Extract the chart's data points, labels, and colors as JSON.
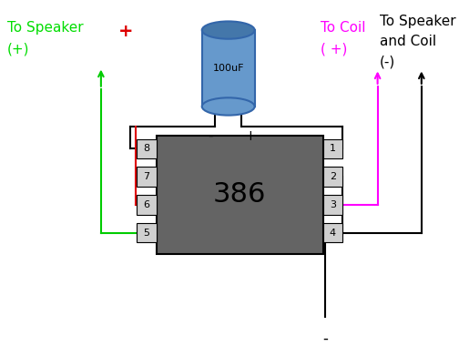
{
  "bg_color": "#ffffff",
  "chip_color": "#646464",
  "chip_label": "386",
  "cap_color": "#6699cc",
  "cap_top_color": "#4477aa",
  "cap_label": "100uF",
  "pin_bg": "#d0d0d0",
  "pin_labels_left": [
    "8",
    "7",
    "6",
    "5"
  ],
  "pin_labels_right": [
    "1",
    "2",
    "3",
    "4"
  ],
  "text_speaker": "To Speaker",
  "text_speaker2": "(+)",
  "text_speaker_color": "#00dd00",
  "text_plus": "+",
  "text_plus_color": "#dd0000",
  "text_tocoil": "To Coil",
  "text_tocoil2": "( +)",
  "text_tocoil_color": "#ff00ff",
  "text_sc1": "To Speaker",
  "text_sc2": "and Coil",
  "text_sc3": "(-)",
  "text_sc_color": "#000000",
  "text_minus_bottom": "-",
  "wire_lw": 1.5,
  "green_color": "#00cc00",
  "red_color": "#dd0000",
  "magenta_color": "#ff00ff",
  "black_color": "#000000"
}
